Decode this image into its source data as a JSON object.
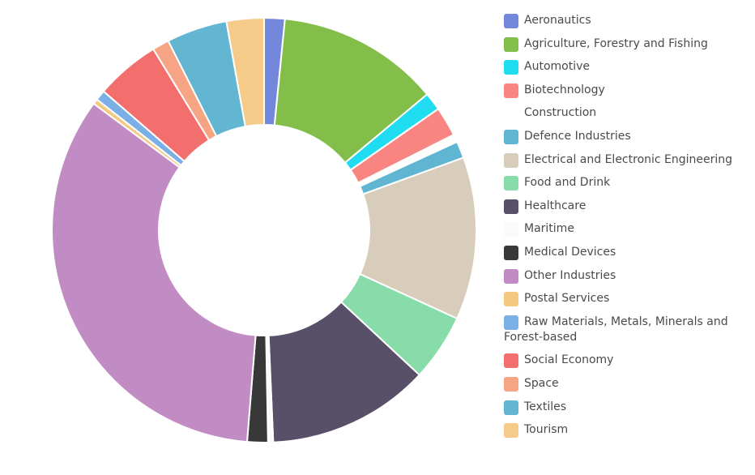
{
  "chart_data": {
    "type": "pie",
    "donut": true,
    "title": "",
    "units": "percent (estimated)",
    "legend_position": "right",
    "categories": [
      "Aeronautics",
      "Agriculture, Forestry and Fishing",
      "Automotive",
      "Biotechnology",
      "Construction",
      "Defence Industries",
      "Electrical and Electronic Engineering",
      "Food and Drink",
      "Healthcare",
      "Maritime",
      "Medical Devices",
      "Other Industries",
      "Postal Services",
      "Raw Materials, Metals, Minerals and Forest-based",
      "Social Economy",
      "Space",
      "Textiles",
      "Tourism"
    ],
    "values": [
      1.6,
      12.6,
      1.4,
      2.3,
      0.6,
      1.3,
      12.6,
      5.2,
      12.6,
      0.4,
      1.6,
      34.5,
      0.4,
      0.8,
      5.0,
      1.3,
      4.7,
      2.9
    ],
    "colors": [
      "#7388db",
      "#82be49",
      "#20dcf0",
      "#f88582",
      "#ffffff",
      "#60b6d2",
      "#d8ccba",
      "#88dcaa",
      "#585068",
      "#fafafa",
      "#383838",
      "#c18cc3",
      "#f5c87f",
      "#7ab0e5",
      "#f26f6e",
      "#f7a484",
      "#62b6d1",
      "#f6ca89"
    ]
  }
}
